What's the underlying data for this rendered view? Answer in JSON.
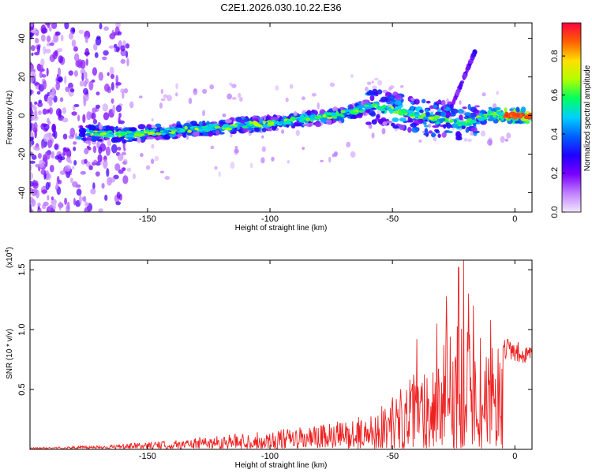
{
  "figure": {
    "title": "C2E1.2026.030.10.22.E36"
  },
  "chart_data": [
    {
      "type": "heatmap",
      "xlabel": "Height of straight line (km)",
      "ylabel": "Frequency (Hz)",
      "xlim": [
        -198,
        7
      ],
      "ylim": [
        -50,
        48
      ],
      "xticks": [
        -150,
        -100,
        -50,
        0
      ],
      "yticks": [
        -40,
        -20,
        0,
        20,
        40
      ],
      "colorbar": {
        "label": "Normalized spectral amplitude",
        "range": [
          0,
          0.97
        ],
        "ticks": [
          0.0,
          0.2,
          0.4,
          0.6,
          0.8
        ],
        "colors": [
          "#f2e6ff",
          "#c080ff",
          "#7a00ff",
          "#2000ff",
          "#0060ff",
          "#00d0ff",
          "#00ff60",
          "#b0ff00",
          "#ffe000",
          "#ff6000",
          "#ff0040"
        ]
      },
      "ridge": {
        "x": [
          -198,
          -175,
          -160,
          -140,
          -120,
          -100,
          -80,
          -65,
          -60,
          -50,
          -40,
          -30,
          -20,
          -15,
          -10,
          -5,
          0,
          7
        ],
        "y": [
          -8,
          -9,
          -10,
          -8,
          -6,
          -4,
          -1,
          2,
          5,
          3,
          0,
          -2,
          -4,
          -2,
          1,
          0,
          0,
          0
        ]
      }
    },
    {
      "type": "line",
      "xlabel": "Height of straight line (km)",
      "ylabel": "SNR (10 * v/v)",
      "y_multiplier": "(x10",
      "y_multiplier_exp": "4",
      "y_multiplier_close": ")",
      "xlim": [
        -198,
        7
      ],
      "ylim": [
        0,
        1.58
      ],
      "xticks": [
        -150,
        -100,
        -50,
        0
      ],
      "yticks": [
        0.5,
        1.0,
        1.5
      ],
      "line_color": "#ee2222",
      "envelope": {
        "x": [
          -198,
          -180,
          -160,
          -140,
          -120,
          -100,
          -80,
          -60,
          -50,
          -40,
          -30,
          -25,
          -20,
          -15,
          -10,
          -5,
          0,
          7
        ],
        "y": [
          0.01,
          0.02,
          0.04,
          0.07,
          0.12,
          0.15,
          0.2,
          0.28,
          0.45,
          0.65,
          0.85,
          1.1,
          1.2,
          0.7,
          0.85,
          0.95,
          0.85,
          0.9
        ]
      },
      "peaks": [
        {
          "x": -40,
          "y": 0.92
        },
        {
          "x": -32,
          "y": 1.05
        },
        {
          "x": -28,
          "y": 1.28
        },
        {
          "x": -23,
          "y": 1.52
        },
        {
          "x": -21,
          "y": 1.58
        },
        {
          "x": -19,
          "y": 1.3
        },
        {
          "x": -17,
          "y": 1.2
        },
        {
          "x": -14,
          "y": 0.93
        },
        {
          "x": -10,
          "y": 1.08
        }
      ]
    }
  ]
}
